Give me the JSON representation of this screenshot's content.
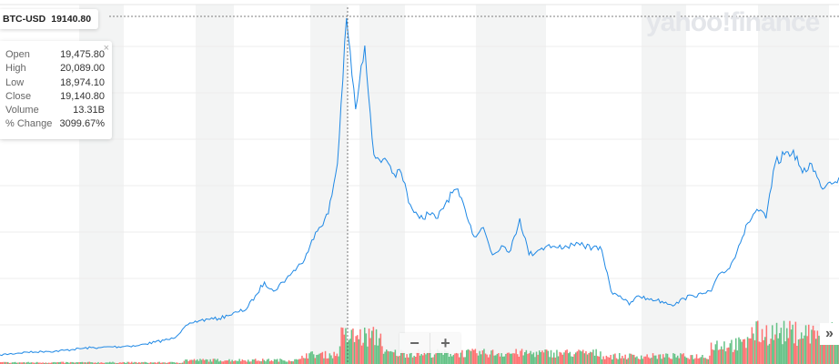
{
  "ticker": {
    "symbol": "BTC-USD",
    "price": "19140.80"
  },
  "tooltip": {
    "rows": [
      {
        "label": "Open",
        "value": "19,475.80"
      },
      {
        "label": "High",
        "value": "20,089.00"
      },
      {
        "label": "Low",
        "value": "18,974.10"
      },
      {
        "label": "Close",
        "value": "19,140.80"
      },
      {
        "label": "Volume",
        "value": "13.31B"
      },
      {
        "label": "% Change",
        "value": "3099.67%"
      }
    ],
    "close_icon": "×"
  },
  "controls": {
    "zoom_out": "−",
    "zoom_in": "+",
    "expand": "»"
  },
  "watermark": "yahoo!finance",
  "colors": {
    "line": "#1e88e5",
    "volume_up": "#5cbf7f",
    "volume_down": "#ff6b6b",
    "band": "#f3f4f4",
    "grid": "#ececec"
  },
  "chart_data": {
    "type": "line",
    "title": "",
    "xlabel": "",
    "ylabel": "",
    "grid": true,
    "series": [
      {
        "values": [
          254,
          305,
          356,
          406,
          406,
          457,
          457,
          508,
          559,
          610,
          660,
          660,
          711,
          711,
          762,
          762,
          864,
          965,
          1067,
          1168,
          1676,
          2032,
          2184,
          2235,
          2286,
          2438,
          2642,
          2794,
          3556,
          4318,
          3810,
          4318,
          4826,
          5334,
          6350,
          7366,
          8128,
          10922,
          19050,
          13970,
          17526,
          11430,
          11176,
          10414,
          10414,
          8636,
          7874,
          8128,
          7874,
          8890,
          9500,
          8382,
          6858,
          7366,
          5842,
          6350,
          6096,
          7874,
          5842,
          6096,
          6350,
          6248,
          6350,
          6350,
          6350,
          6248,
          6096,
          3810,
          3556,
          3048,
          3556,
          3404,
          3302,
          3200,
          3048,
          3404,
          3556,
          3658,
          3810,
          4826,
          5080,
          6350,
          7620,
          8382,
          7874,
          10922,
          11430,
          11684,
          10414,
          10922,
          9652,
          9906,
          10160
        ]
      }
    ],
    "crosshair_value": 19140.8,
    "volume_bars": "red/green"
  }
}
